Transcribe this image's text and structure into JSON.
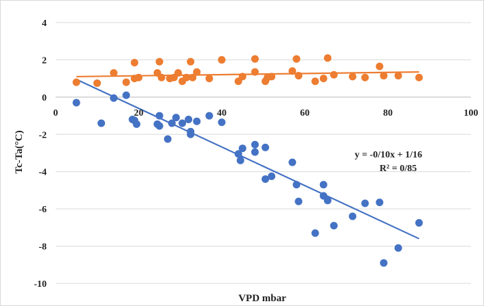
{
  "chart_data": {
    "type": "scatter",
    "title": "",
    "xlabel": "VPD mbar",
    "ylabel": "Tc-Ta(°C)",
    "xlim": [
      0,
      100
    ],
    "ylim": [
      -10,
      4
    ],
    "x_ticks": [
      0,
      20,
      40,
      60,
      80,
      100
    ],
    "y_ticks": [
      4,
      2,
      0,
      -2,
      -4,
      -6,
      -8,
      -10
    ],
    "grid": "horizontal",
    "legend": "none",
    "trendline_label": {
      "equation": "y = -0/10x + 1/16",
      "r2": "R² = 0/85"
    },
    "series": [
      {
        "color": "#ED7D31",
        "points": [
          {
            "x": 5,
            "y": 0.8
          },
          {
            "x": 10,
            "y": 0.75
          },
          {
            "x": 14,
            "y": 1.3
          },
          {
            "x": 17,
            "y": 0.8
          },
          {
            "x": 19,
            "y": 1.0
          },
          {
            "x": 19,
            "y": 1.85
          },
          {
            "x": 20,
            "y": 1.05
          },
          {
            "x": 24.5,
            "y": 1.3
          },
          {
            "x": 25,
            "y": 1.9
          },
          {
            "x": 25.5,
            "y": 1.05
          },
          {
            "x": 27.5,
            "y": 1.0
          },
          {
            "x": 28.5,
            "y": 1.05
          },
          {
            "x": 29.5,
            "y": 1.3
          },
          {
            "x": 30.5,
            "y": 0.85
          },
          {
            "x": 31.5,
            "y": 1.05
          },
          {
            "x": 32.5,
            "y": 1.9
          },
          {
            "x": 33,
            "y": 1.05
          },
          {
            "x": 34,
            "y": 1.35
          },
          {
            "x": 37,
            "y": 1.0
          },
          {
            "x": 40,
            "y": 2.0
          },
          {
            "x": 44,
            "y": 0.85
          },
          {
            "x": 45,
            "y": 1.1
          },
          {
            "x": 48,
            "y": 2.05
          },
          {
            "x": 48,
            "y": 1.35
          },
          {
            "x": 50.5,
            "y": 0.85
          },
          {
            "x": 51,
            "y": 1.05
          },
          {
            "x": 52,
            "y": 1.1
          },
          {
            "x": 57,
            "y": 1.4
          },
          {
            "x": 58,
            "y": 2.05
          },
          {
            "x": 58.5,
            "y": 1.15
          },
          {
            "x": 62.5,
            "y": 0.85
          },
          {
            "x": 64.5,
            "y": 1.0
          },
          {
            "x": 65.5,
            "y": 2.1
          },
          {
            "x": 67,
            "y": 1.2
          },
          {
            "x": 71.5,
            "y": 1.1
          },
          {
            "x": 74.5,
            "y": 1.05
          },
          {
            "x": 78,
            "y": 1.65
          },
          {
            "x": 79,
            "y": 1.15
          },
          {
            "x": 82.5,
            "y": 1.15
          },
          {
            "x": 87.5,
            "y": 1.05
          }
        ],
        "trendline": {
          "x": [
            5,
            87.5
          ],
          "y": [
            1.1,
            1.35
          ]
        }
      },
      {
        "color": "#4472C4",
        "points": [
          {
            "x": 5,
            "y": -0.3
          },
          {
            "x": 11,
            "y": -1.4
          },
          {
            "x": 14,
            "y": -0.05
          },
          {
            "x": 17,
            "y": 0.1
          },
          {
            "x": 18.5,
            "y": -1.2
          },
          {
            "x": 19,
            "y": -1.25
          },
          {
            "x": 19.5,
            "y": -1.45
          },
          {
            "x": 24.5,
            "y": -1.45
          },
          {
            "x": 25,
            "y": -1.55
          },
          {
            "x": 25,
            "y": -1.0
          },
          {
            "x": 27,
            "y": -2.25
          },
          {
            "x": 28,
            "y": -1.4
          },
          {
            "x": 29,
            "y": -1.1
          },
          {
            "x": 30.5,
            "y": -1.4
          },
          {
            "x": 32,
            "y": -1.2
          },
          {
            "x": 32.5,
            "y": -1.85
          },
          {
            "x": 32.5,
            "y": -2.0
          },
          {
            "x": 34,
            "y": -1.3
          },
          {
            "x": 37,
            "y": -1.0
          },
          {
            "x": 40,
            "y": -1.35
          },
          {
            "x": 44,
            "y": -3.05
          },
          {
            "x": 44.5,
            "y": -3.4
          },
          {
            "x": 45,
            "y": -2.75
          },
          {
            "x": 48,
            "y": -2.55
          },
          {
            "x": 48,
            "y": -2.95
          },
          {
            "x": 50.5,
            "y": -4.4
          },
          {
            "x": 50.5,
            "y": -2.7
          },
          {
            "x": 52,
            "y": -4.25
          },
          {
            "x": 57,
            "y": -3.5
          },
          {
            "x": 58,
            "y": -4.7
          },
          {
            "x": 58.5,
            "y": -5.6
          },
          {
            "x": 62.5,
            "y": -7.3
          },
          {
            "x": 64.5,
            "y": -4.7
          },
          {
            "x": 64.5,
            "y": -5.3
          },
          {
            "x": 65.5,
            "y": -5.55
          },
          {
            "x": 67,
            "y": -6.9
          },
          {
            "x": 71.5,
            "y": -6.4
          },
          {
            "x": 74.5,
            "y": -5.7
          },
          {
            "x": 78,
            "y": -5.65
          },
          {
            "x": 79,
            "y": -8.9
          },
          {
            "x": 82.5,
            "y": -8.1
          },
          {
            "x": 87.5,
            "y": -6.75
          }
        ],
        "trendline": {
          "x": [
            5,
            87.5
          ],
          "y": [
            0.95,
            -7.6
          ]
        }
      }
    ]
  }
}
